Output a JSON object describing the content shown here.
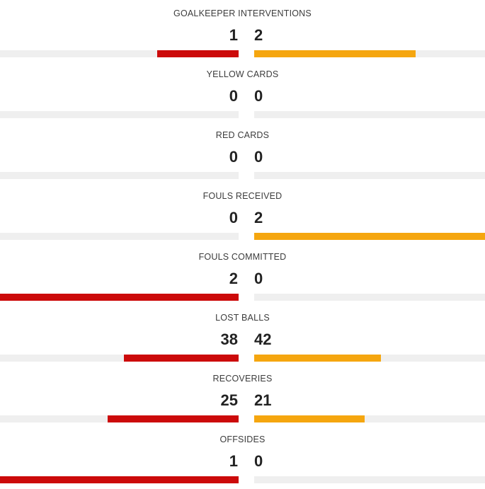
{
  "colors": {
    "home": "#cc0a0a",
    "away": "#f5a60f",
    "track": "#efefef"
  },
  "stats": [
    {
      "label": "GOALKEEPER INTERVENTIONS",
      "home": "1",
      "away": "2",
      "home_share": 0.34,
      "away_share": 0.7
    },
    {
      "label": "YELLOW CARDS",
      "home": "0",
      "away": "0",
      "home_share": 0,
      "away_share": 0
    },
    {
      "label": "RED CARDS",
      "home": "0",
      "away": "0",
      "home_share": 0,
      "away_share": 0
    },
    {
      "label": "FOULS RECEIVED",
      "home": "0",
      "away": "2",
      "home_share": 0,
      "away_share": 1.0
    },
    {
      "label": "FOULS COMMITTED",
      "home": "2",
      "away": "0",
      "home_share": 1.0,
      "away_share": 0
    },
    {
      "label": "LOST BALLS",
      "home": "38",
      "away": "42",
      "home_share": 0.48,
      "away_share": 0.55
    },
    {
      "label": "RECOVERIES",
      "home": "25",
      "away": "21",
      "home_share": 0.55,
      "away_share": 0.48
    },
    {
      "label": "OFFSIDES",
      "home": "1",
      "away": "0",
      "home_share": 1.0,
      "away_share": 0
    }
  ]
}
